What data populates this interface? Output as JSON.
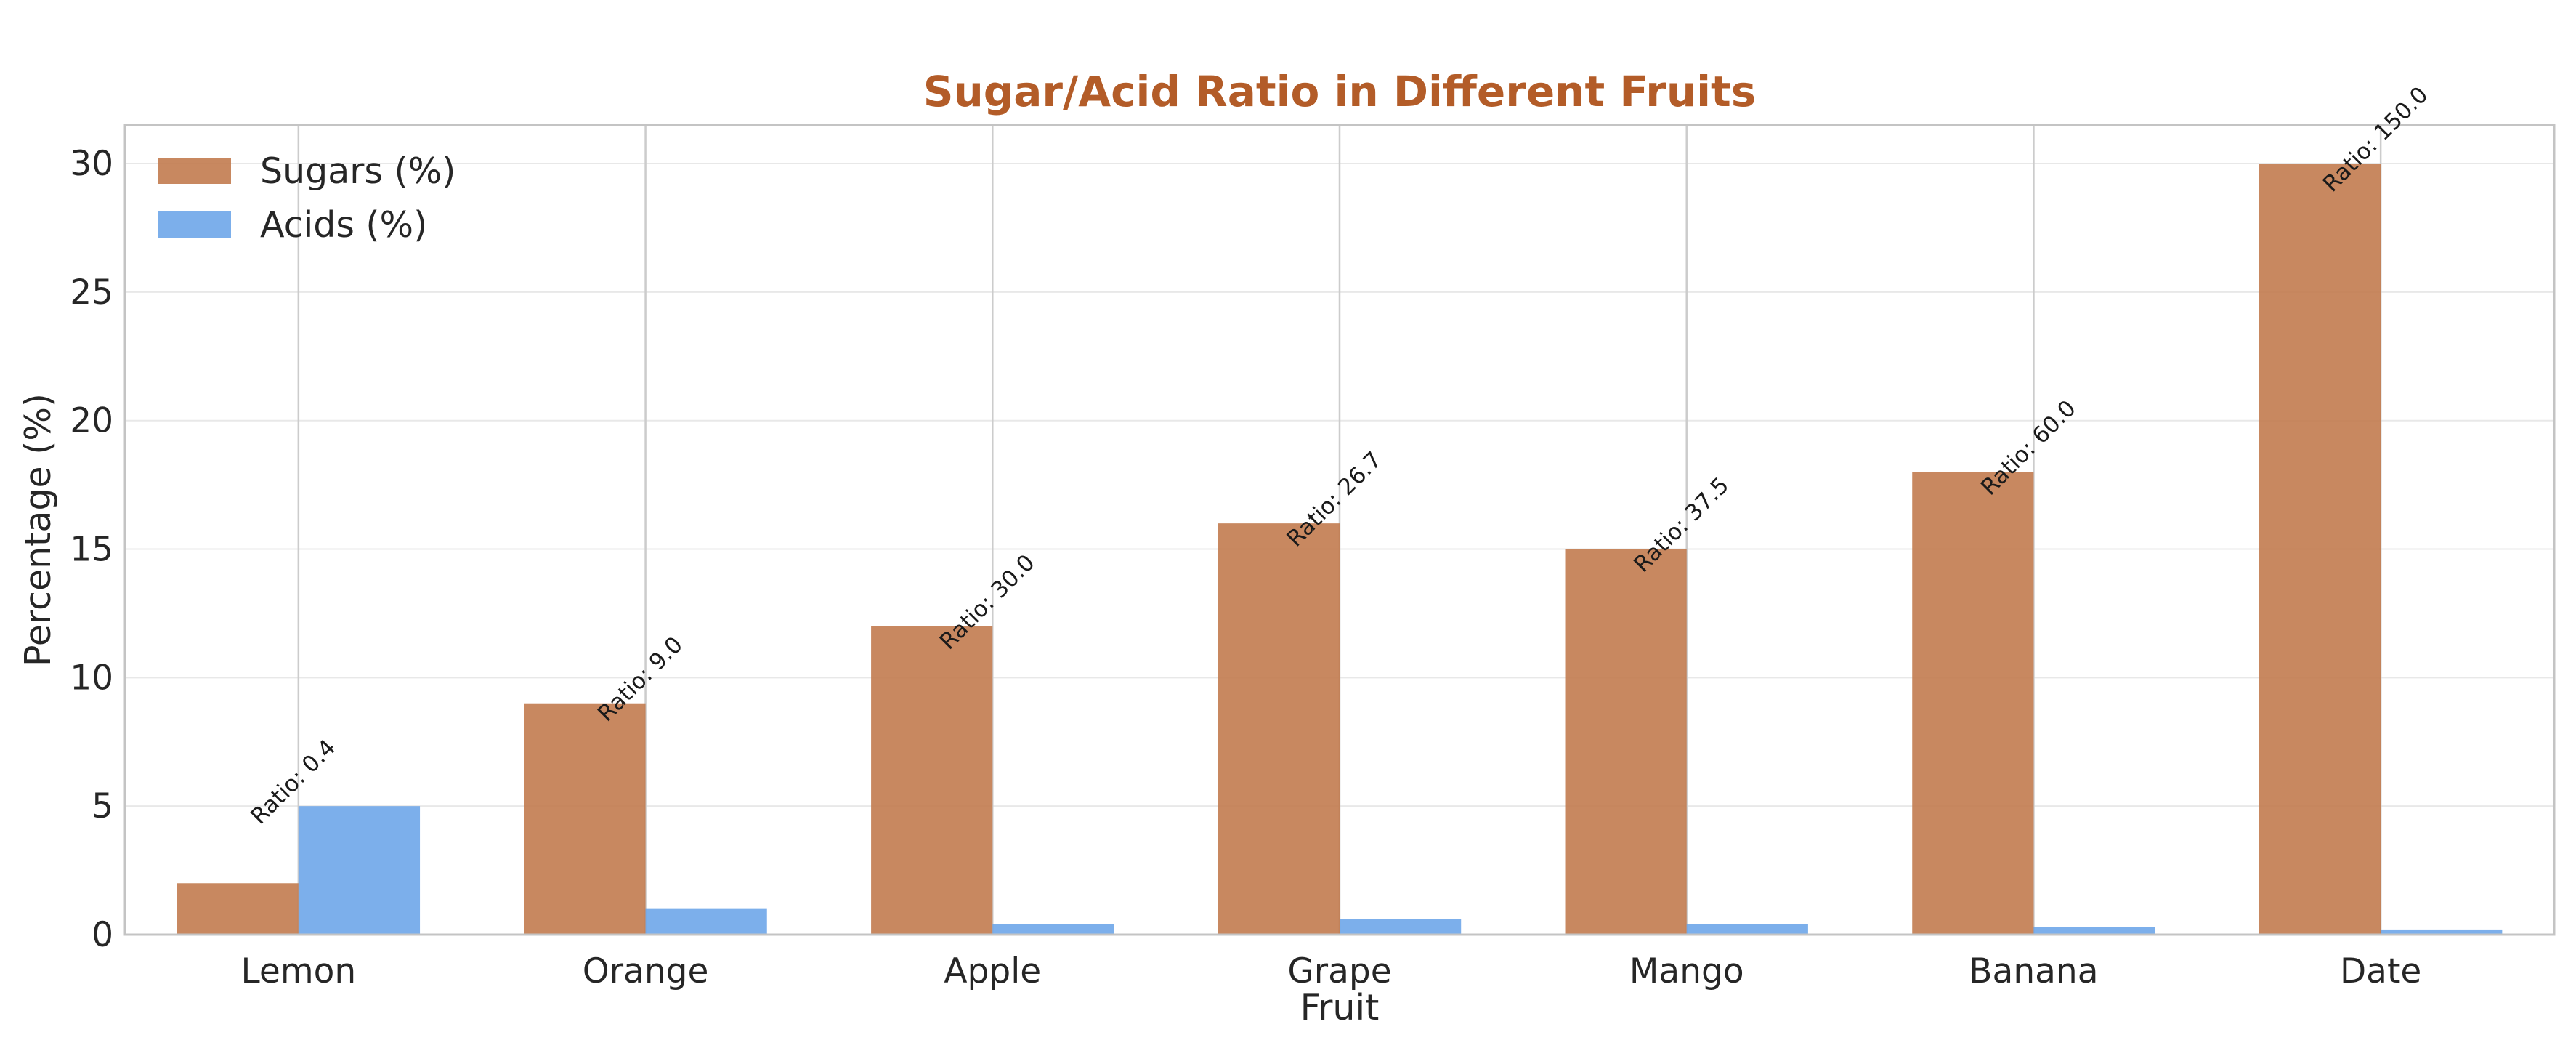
{
  "chart_data": {
    "type": "bar",
    "title": "Sugar/Acid Ratio in Different Fruits",
    "xlabel": "Fruit",
    "ylabel": "Percentage (%)",
    "categories": [
      "Lemon",
      "Orange",
      "Apple",
      "Grape",
      "Mango",
      "Banana",
      "Date"
    ],
    "series": [
      {
        "name": "Sugars (%)",
        "values": [
          2,
          9,
          12,
          16,
          15,
          18,
          30
        ],
        "color": "#c0784a"
      },
      {
        "name": "Acids (%)",
        "values": [
          5,
          1,
          0.4,
          0.6,
          0.4,
          0.3,
          0.2
        ],
        "color": "#6aa4e8"
      }
    ],
    "annotations": [
      "Ratio: 0.4",
      "Ratio: 9.0",
      "Ratio: 30.0",
      "Ratio: 26.7",
      "Ratio: 37.5",
      "Ratio: 60.0",
      "Ratio: 150.0"
    ],
    "yticks": [
      0,
      5,
      10,
      15,
      20,
      25,
      30
    ],
    "ylim": [
      0,
      31.5
    ],
    "grid": true,
    "legend_position": "top-left",
    "title_color": "#b35c28"
  }
}
